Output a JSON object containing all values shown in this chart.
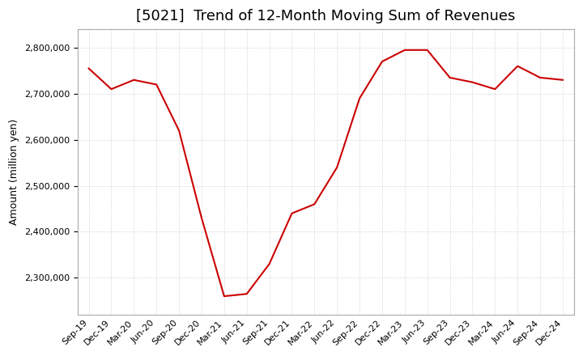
{
  "title": "[5021]  Trend of 12-Month Moving Sum of Revenues",
  "ylabel": "Amount (million yen)",
  "background_color": "#ffffff",
  "grid_color": "#c8c8c8",
  "line_color": "#cc0000",
  "x_labels": [
    "Sep-19",
    "Dec-19",
    "Mar-20",
    "Jun-20",
    "Sep-20",
    "Dec-20",
    "Mar-21",
    "Jun-21",
    "Sep-21",
    "Dec-21",
    "Mar-22",
    "Jun-22",
    "Sep-22",
    "Dec-22",
    "Mar-23",
    "Jun-23",
    "Sep-23",
    "Dec-23",
    "Mar-24",
    "Jun-24",
    "Sep-24",
    "Dec-24"
  ],
  "values": [
    2755000,
    2710000,
    2730000,
    2720000,
    2620000,
    2430000,
    2260000,
    2265000,
    2330000,
    2440000,
    2460000,
    2540000,
    2690000,
    2770000,
    2795000,
    2795000,
    2735000,
    2725000,
    2710000,
    2760000,
    2735000,
    2730000
  ],
  "ylim_min": 2220000,
  "ylim_max": 2840000,
  "yticks": [
    2300000,
    2400000,
    2500000,
    2600000,
    2700000,
    2800000
  ],
  "title_fontsize": 13,
  "axis_fontsize": 9,
  "tick_fontsize": 8,
  "title_fontweight": "normal"
}
